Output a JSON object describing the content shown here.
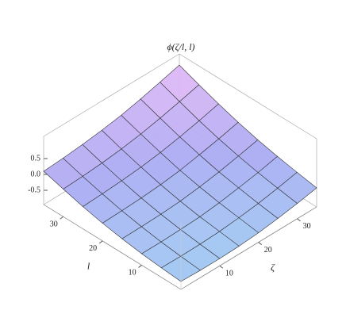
{
  "chart_data": {
    "type": "surface",
    "title": "ϕ(ζ/l, l)",
    "x_label": "ζ",
    "y_label": "l",
    "x": [
      0,
      5,
      10,
      15,
      20,
      25,
      30,
      35
    ],
    "y": [
      0,
      5,
      10,
      15,
      20,
      25,
      30,
      35
    ],
    "z": [
      [
        -0.7,
        -0.72,
        -0.72,
        -0.7,
        -0.65,
        -0.57,
        -0.47,
        -0.35
      ],
      [
        -0.65,
        -0.66,
        -0.65,
        -0.62,
        -0.56,
        -0.48,
        -0.37,
        -0.24
      ],
      [
        -0.59,
        -0.59,
        -0.57,
        -0.54,
        -0.47,
        -0.37,
        -0.26,
        -0.12
      ],
      [
        -0.5,
        -0.49,
        -0.47,
        -0.43,
        -0.35,
        -0.25,
        -0.12,
        0.02
      ],
      [
        -0.39,
        -0.37,
        -0.34,
        -0.29,
        -0.21,
        -0.09,
        0.04,
        0.19
      ],
      [
        -0.25,
        -0.22,
        -0.18,
        -0.12,
        -0.03,
        0.09,
        0.23,
        0.39
      ],
      [
        -0.08,
        -0.05,
        0.0,
        0.07,
        0.17,
        0.3,
        0.45,
        0.61
      ],
      [
        0.1,
        0.14,
        0.2,
        0.28,
        0.38,
        0.52,
        0.68,
        0.85
      ]
    ],
    "xlim": [
      0,
      35
    ],
    "ylim": [
      0,
      35
    ],
    "zlim": [
      -0.95,
      1.2
    ],
    "xticks": [
      10,
      20,
      30
    ],
    "yticks": [
      10,
      20,
      30
    ],
    "zticks": [
      -0.5,
      {
        "value": 0,
        "label": "0.0"
      },
      0.5
    ]
  }
}
